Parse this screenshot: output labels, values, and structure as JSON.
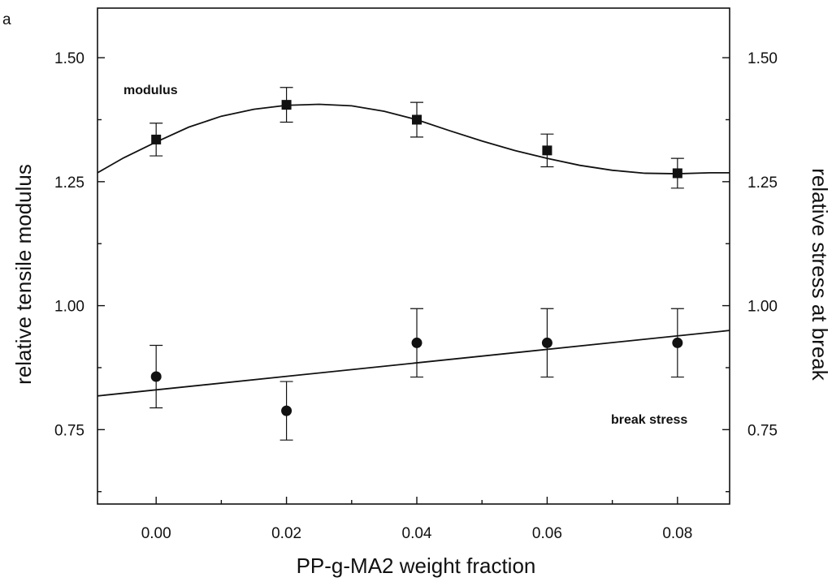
{
  "chart_data": {
    "type": "scatter",
    "panel_mark": "a",
    "xlabel": "PP-g-MA2 weight fraction",
    "ylabel_left": "relative tensile modulus",
    "ylabel_right": "relative stress at break",
    "xlim": [
      -0.009,
      0.088
    ],
    "ylim": [
      0.6,
      1.6
    ],
    "x_ticks": [
      0.0,
      0.02,
      0.04,
      0.06,
      0.08
    ],
    "x_tick_labels": [
      "0.00",
      "0.02",
      "0.04",
      "0.06",
      "0.08"
    ],
    "y_ticks_left": [
      0.75,
      1.0,
      1.25,
      1.5
    ],
    "y_tick_labels_left": [
      "0.75",
      "1.00",
      "1.25",
      "1.50"
    ],
    "y_ticks_right": [
      0.75,
      1.0,
      1.25,
      1.5
    ],
    "y_tick_labels_right": [
      "0.75",
      "1.00",
      "1.25",
      "1.50"
    ],
    "grid": false,
    "annotations": [
      {
        "text": "modulus",
        "x": 0.002,
        "y": 1.445
      },
      {
        "text": "break stress",
        "x": 0.062,
        "y": 0.775
      }
    ],
    "series": [
      {
        "name": "modulus",
        "marker": "square",
        "x": [
          0.0,
          0.02,
          0.04,
          0.06,
          0.08
        ],
        "y": [
          1.335,
          1.405,
          1.375,
          1.313,
          1.267
        ],
        "yerr": [
          0.033,
          0.035,
          0.035,
          0.033,
          0.03
        ],
        "fit": {
          "x": [
            -0.009,
            -0.005,
            0.0,
            0.005,
            0.01,
            0.015,
            0.02,
            0.025,
            0.03,
            0.035,
            0.04,
            0.045,
            0.05,
            0.055,
            0.06,
            0.065,
            0.07,
            0.075,
            0.08,
            0.085,
            0.088
          ],
          "y": [
            1.268,
            1.298,
            1.33,
            1.36,
            1.382,
            1.396,
            1.404,
            1.406,
            1.403,
            1.392,
            1.375,
            1.353,
            1.332,
            1.313,
            1.297,
            1.283,
            1.273,
            1.267,
            1.266,
            1.268,
            1.268
          ]
        }
      },
      {
        "name": "break stress",
        "marker": "circle",
        "x": [
          0.0,
          0.02,
          0.04,
          0.06,
          0.08
        ],
        "y": [
          0.857,
          0.788,
          0.925,
          0.925,
          0.925
        ],
        "yerr": [
          0.063,
          0.059,
          0.069,
          0.069,
          0.069
        ],
        "fit": {
          "x": [
            -0.009,
            0.088
          ],
          "y": [
            0.818,
            0.95
          ]
        }
      }
    ]
  }
}
